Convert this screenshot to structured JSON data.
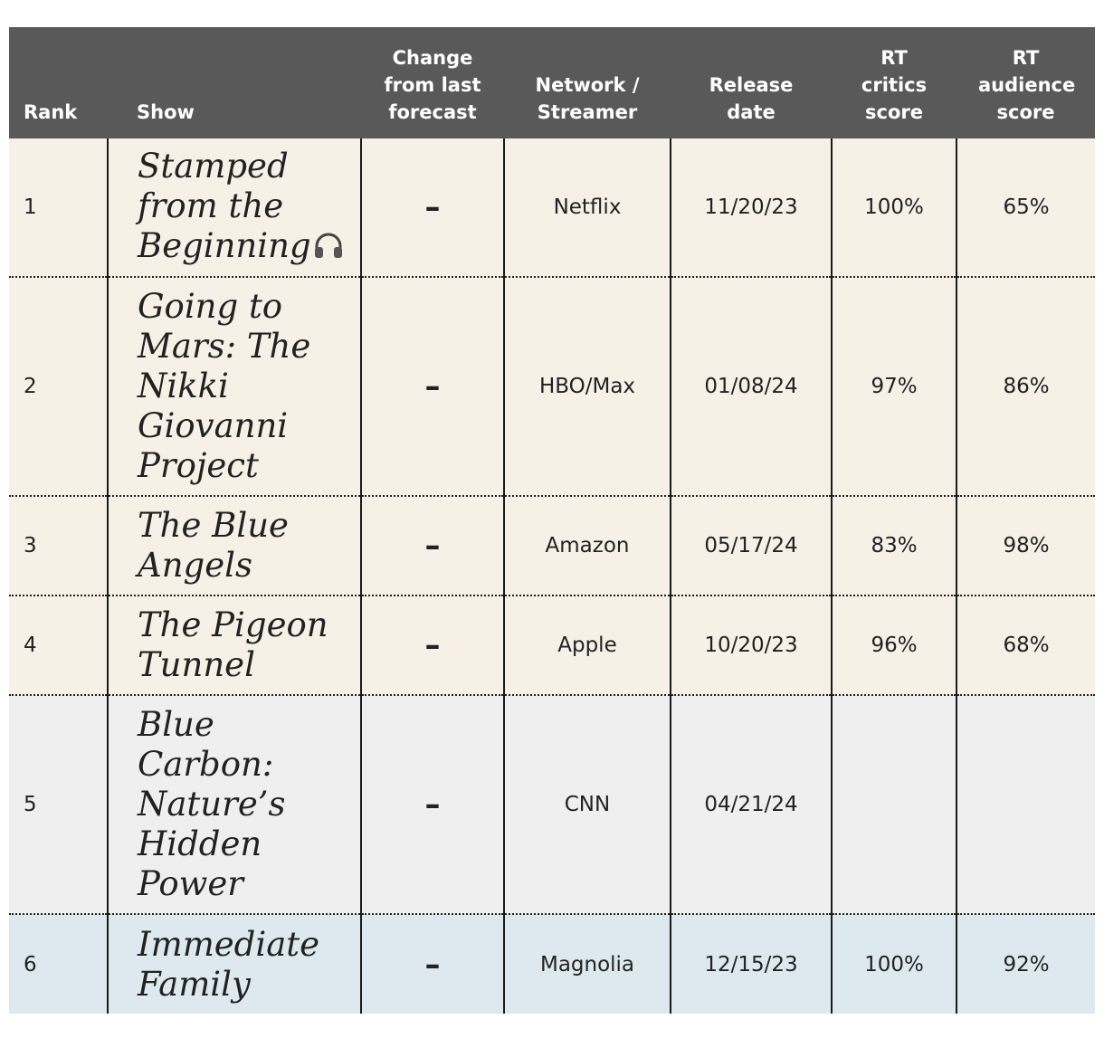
{
  "table": {
    "headers": {
      "rank": "Rank",
      "show": "Show",
      "change": "Change from last forecast",
      "network": "Network / Streamer",
      "release": "Release date",
      "critics": "RT critics score",
      "audience": "RT audience score"
    },
    "rows": [
      {
        "rank": "1",
        "show": "Stamped from the Beginning",
        "badge_icon": "headphones-icon",
        "change": "–",
        "network": "Netflix",
        "release": "11/20/23",
        "critics": "100%",
        "audience": "65%",
        "row_color": "#f6f0e7"
      },
      {
        "rank": "2",
        "show": "Going to Mars: The Nikki Giovanni Project",
        "change": "–",
        "network": "HBO/Max",
        "release": "01/08/24",
        "critics": "97%",
        "audience": "86%",
        "row_color": "#f6f0e7"
      },
      {
        "rank": "3",
        "show": "The Blue Angels",
        "change": "–",
        "network": "Amazon",
        "release": "05/17/24",
        "critics": "83%",
        "audience": "98%",
        "row_color": "#f6f0e7"
      },
      {
        "rank": "4",
        "show": "The Pigeon Tunnel",
        "change": "–",
        "network": "Apple",
        "release": "10/20/23",
        "critics": "96%",
        "audience": "68%",
        "row_color": "#f6f0e7"
      },
      {
        "rank": "5",
        "show": "Blue Carbon: Nature’s Hidden Power",
        "change": "–",
        "network": "CNN",
        "release": "04/21/24",
        "critics": "",
        "audience": "",
        "row_color": "#efefef"
      },
      {
        "rank": "6",
        "show": "Immediate Family",
        "change": "–",
        "network": "Magnolia",
        "release": "12/15/23",
        "critics": "100%",
        "audience": "92%",
        "row_color": "#dde9ef"
      }
    ]
  }
}
